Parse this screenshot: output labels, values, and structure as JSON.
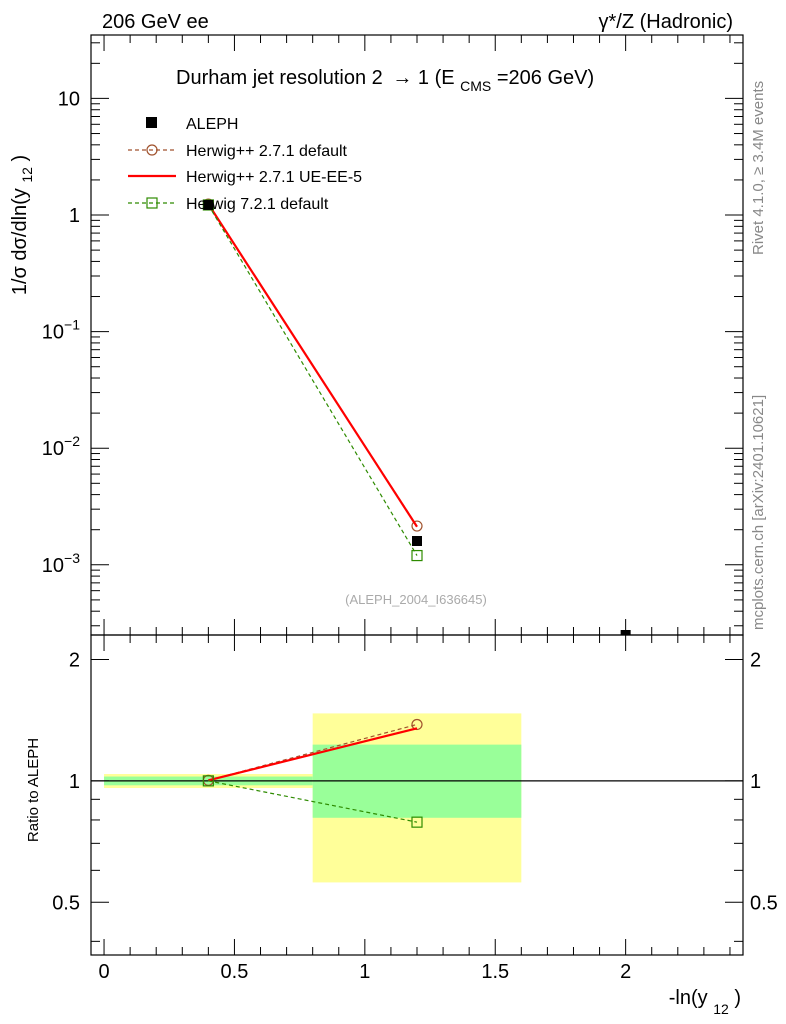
{
  "header": {
    "left": "206 GeV ee",
    "right": "γ*/Z (Hadronic)"
  },
  "side_labels": {
    "rivet": "Rivet 4.1.0, ≥ 3.4M events",
    "mcplots": "mcplots.cern.ch [arXiv:2401.10621]"
  },
  "chart_data": {
    "type": "line",
    "title": "Durham jet resolution 2 → 1 (E_CMS=206 GeV)",
    "title_parts": {
      "main": "Durham jet resolution 2",
      "arrow": "→",
      "num": " 1 (E",
      "sub": "CMS",
      "tail": "=206 GeV)"
    },
    "analysis_id": "(ALEPH_2004_I636645)",
    "xlabel": "-ln(y_12)",
    "xlabel_parts": {
      "main": "-ln(y",
      "sub": "12",
      "close": ")"
    },
    "ylabel": "1/σ dσ/dln(y_12)",
    "ylabel_parts": {
      "main": "1/σ  dσ/dln(y",
      "sub": "12",
      "close": ")"
    },
    "ratio_ylabel": "Ratio to ALEPH",
    "xlim": [
      -0.05,
      2.45
    ],
    "ylim": [
      0.00025,
      35
    ],
    "ratio_ylim": [
      0.37,
      2.3
    ],
    "yscale": "log",
    "x_ticks": [
      "0",
      "0.5",
      "1",
      "1.5",
      "2"
    ],
    "x_tick_values": [
      0,
      0.5,
      1,
      1.5,
      2
    ],
    "y_tick_labels": [
      {
        "value": 10,
        "base": "10",
        "exp": ""
      },
      {
        "value": 1,
        "base": "1",
        "exp": ""
      },
      {
        "value": 0.1,
        "base": "10",
        "exp": "−1"
      },
      {
        "value": 0.01,
        "base": "10",
        "exp": "−2"
      },
      {
        "value": 0.001,
        "base": "10",
        "exp": "−3"
      }
    ],
    "ratio_ticks": [
      "0.5",
      "1",
      "2"
    ],
    "ratio_tick_values": [
      0.5,
      1,
      2
    ],
    "data": {
      "name": "ALEPH",
      "x": [
        0.4,
        1.2,
        2.0
      ],
      "y": [
        1.22,
        0.0016,
        0.00023
      ],
      "xerr": [
        0.4,
        0.4,
        0.4
      ]
    },
    "series": [
      {
        "name": "Herwig++ 2.7.1 default",
        "color": "#a0522d",
        "dash": "4,3",
        "marker": "circle",
        "x": [
          0.4,
          1.2
        ],
        "y": [
          1.24,
          0.00215
        ],
        "ratio": [
          1.003,
          1.38
        ]
      },
      {
        "name": "Herwig++ 2.7.1 UE-EE-5",
        "color": "#ff0000",
        "dash": "",
        "marker": "none",
        "x": [
          0.4,
          1.2
        ],
        "y": [
          1.24,
          0.00212
        ],
        "ratio": [
          1.003,
          1.35
        ]
      },
      {
        "name": "Herwig 7.2.1 default",
        "color": "#2e8b00",
        "dash": "4,3",
        "marker": "square",
        "x": [
          0.4,
          1.2
        ],
        "y": [
          1.22,
          0.0012
        ],
        "ratio": [
          1.0,
          0.79
        ]
      }
    ],
    "uncertainty_bands": [
      {
        "xmin": -0.0,
        "xmax": 0.8,
        "stat_sys_lo": 0.96,
        "stat_sys_hi": 1.04,
        "stat_lo": 0.975,
        "stat_hi": 1.025
      },
      {
        "xmin": 0.8,
        "xmax": 1.6,
        "stat_sys_lo": 0.56,
        "stat_sys_hi": 1.47,
        "stat_lo": 0.81,
        "stat_hi": 1.23
      }
    ],
    "colors": {
      "stat_band": "#99ff99",
      "total_band": "#ffff99",
      "data": "#000000"
    }
  }
}
